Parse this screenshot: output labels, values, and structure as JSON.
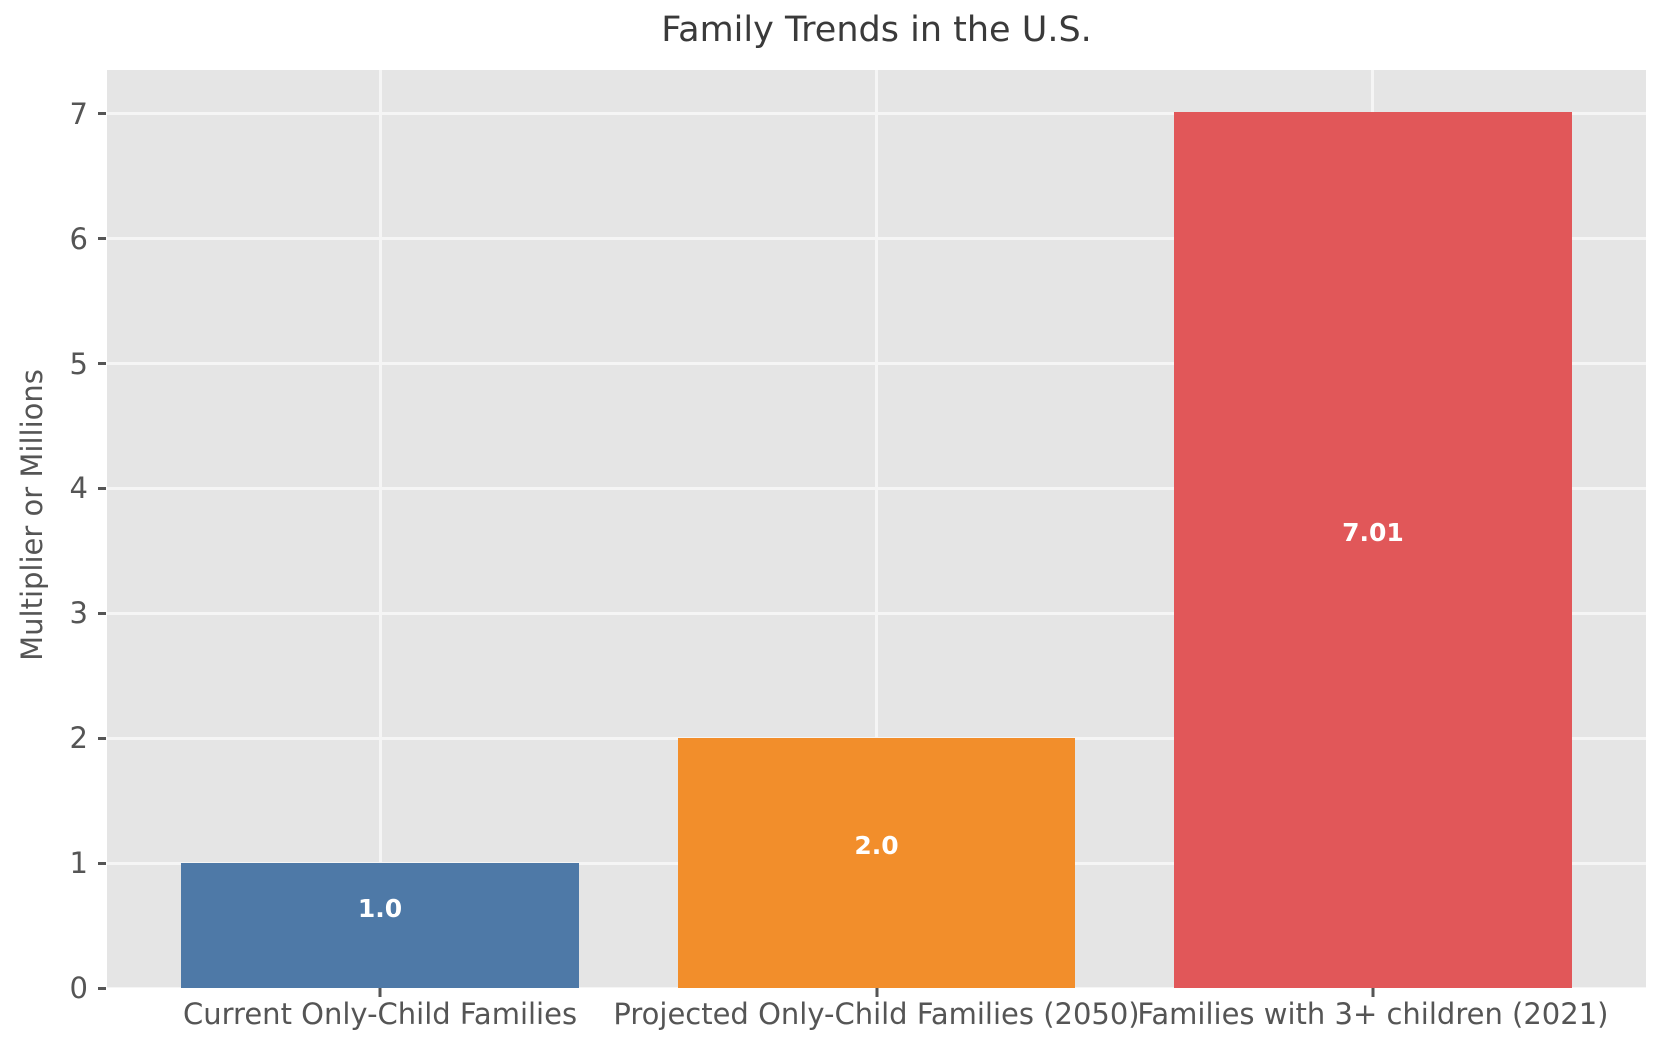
{
  "chart_data": {
    "type": "bar",
    "title": "Family Trends in the U.S.",
    "categories": [
      "Current Only-Child Families",
      "Projected Only-Child Families (2050)",
      "Families with 3+ children (2021)"
    ],
    "values": [
      1.0,
      2.0,
      7.01
    ],
    "value_labels": [
      "1.0",
      "2.0",
      "7.01"
    ],
    "bar_colors": [
      "#4e79a7",
      "#f28e2b",
      "#e15759"
    ],
    "xlabel": "",
    "ylabel": "Multiplier or Millions",
    "yticks": [
      0,
      1,
      2,
      3,
      4,
      5,
      6,
      7
    ],
    "ylim": [
      0,
      7.35
    ],
    "xlim": [
      -0.55,
      2.55
    ],
    "bar_width": 0.8,
    "grid": true,
    "legend_position": "none",
    "plot_background": "#e5e5e5",
    "grid_color": "#f5f5f5",
    "tick_text_color": "#555555",
    "title_color": "#3a3a3a",
    "value_label_color": "#ffffff"
  }
}
